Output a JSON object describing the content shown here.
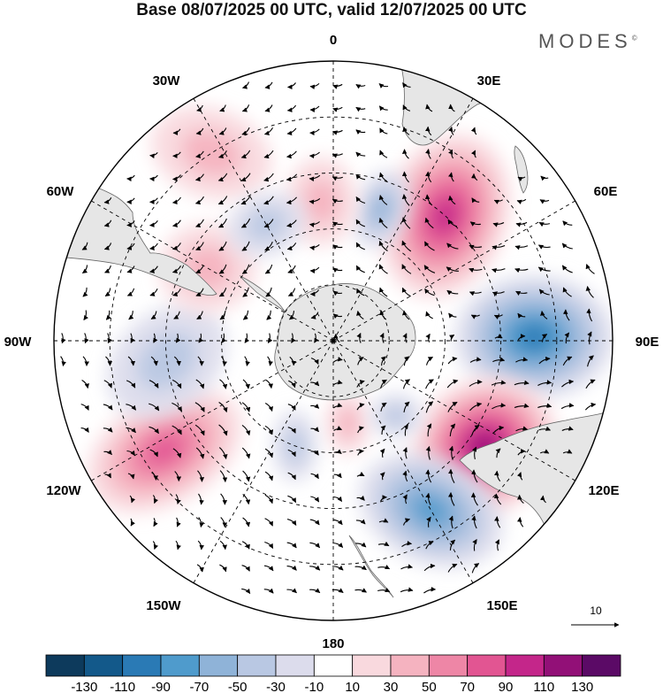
{
  "title": "Base 08/07/2025 00 UTC, valid 12/07/2025 00 UTC",
  "brand": "MODES",
  "brand_mark": "©",
  "projection": "south polar stereographic",
  "longitude_labels": {
    "lon_0": "0",
    "lon_30e": "30E",
    "lon_60e": "60E",
    "lon_90e": "90E",
    "lon_120e": "120E",
    "lon_150e": "150E",
    "lon_180": "180",
    "lon_150w": "150W",
    "lon_120w": "120W",
    "lon_90w": "90W",
    "lon_60w": "60W",
    "lon_30w": "30W"
  },
  "reference_vector": {
    "label": "10"
  },
  "colorbar": {
    "colors": [
      "#0d3a5c",
      "#13598a",
      "#2a7ab5",
      "#4f9bcc",
      "#8fb3d8",
      "#b9c8e3",
      "#dcdcec",
      "#ffffff",
      "#f9d9de",
      "#f5b3c0",
      "#ee86a6",
      "#e25592",
      "#c4268a",
      "#921077",
      "#5b0a66"
    ],
    "tick_labels": [
      "-130",
      "-110",
      "-90",
      "-70",
      "-50",
      "-30",
      "-10",
      "10",
      "30",
      "50",
      "70",
      "90",
      "110",
      "130"
    ]
  },
  "features": {
    "land_color": "#e6e6e6",
    "coast_color": "#666666",
    "anomaly_centers": [
      {
        "lon": 42,
        "dist": 0.6,
        "value": 95,
        "rx": 70,
        "ry": 95,
        "rot": 20
      },
      {
        "lon": 89,
        "dist": 0.72,
        "value": -85,
        "rx": 90,
        "ry": 70,
        "rot": 0
      },
      {
        "lon": 125,
        "dist": 0.66,
        "value": 120,
        "rx": 85,
        "ry": 75,
        "rot": -30
      },
      {
        "lon": 150,
        "dist": 0.7,
        "value": -80,
        "rx": 85,
        "ry": 60,
        "rot": 25
      },
      {
        "lon": -123,
        "dist": 0.72,
        "value": 70,
        "rx": 95,
        "ry": 60,
        "rot": -30
      },
      {
        "lon": -97,
        "dist": 0.6,
        "value": -40,
        "rx": 75,
        "ry": 55,
        "rot": -40
      },
      {
        "lon": -60,
        "dist": 0.52,
        "value": 40,
        "rx": 55,
        "ry": 50,
        "rot": 0
      },
      {
        "lon": -33,
        "dist": 0.8,
        "value": 40,
        "rx": 70,
        "ry": 50,
        "rot": 20
      },
      {
        "lon": 20,
        "dist": 0.5,
        "value": -60,
        "rx": 30,
        "ry": 45,
        "rot": 20
      },
      {
        "lon": -5,
        "dist": 0.5,
        "value": 35,
        "rx": 40,
        "ry": 50,
        "rot": 0
      },
      {
        "lon": -30,
        "dist": 0.48,
        "value": -40,
        "rx": 45,
        "ry": 35,
        "rot": -20
      },
      {
        "lon": 170,
        "dist": 0.3,
        "value": 40,
        "rx": 25,
        "ry": 35,
        "rot": 0
      },
      {
        "lon": 140,
        "dist": 0.35,
        "value": -30,
        "rx": 30,
        "ry": 25,
        "rot": 0
      },
      {
        "lon": -160,
        "dist": 0.4,
        "value": -30,
        "rx": 25,
        "ry": 40,
        "rot": 0
      }
    ]
  }
}
